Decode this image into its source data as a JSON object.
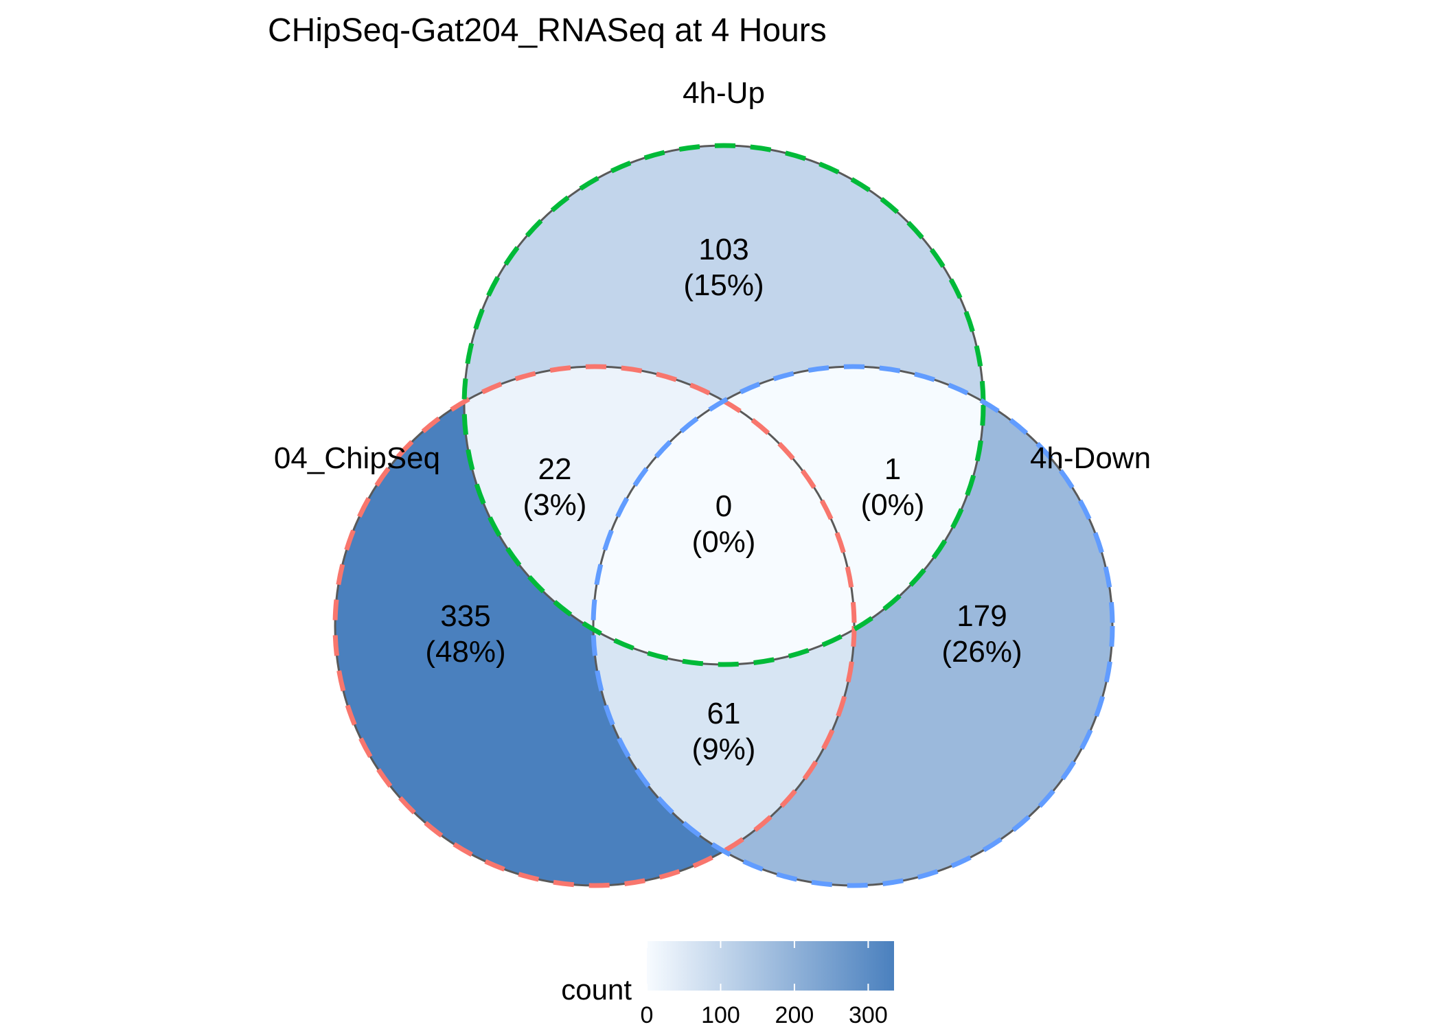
{
  "chart_data": {
    "type": "venn",
    "title": "CHipSeq-Gat204_RNASeq at 4 Hours",
    "sets": [
      {
        "key": "chip",
        "label": "04_ChipSeq",
        "edge_color": "#F8766D"
      },
      {
        "key": "up",
        "label": "4h-Up",
        "edge_color": "#00BA38"
      },
      {
        "key": "down",
        "label": "4h-Down",
        "edge_color": "#619CFF"
      }
    ],
    "regions": [
      {
        "sets": [
          "up"
        ],
        "count": 103,
        "percent": "(15%)"
      },
      {
        "sets": [
          "chip",
          "up"
        ],
        "count": 22,
        "percent": "(3%)"
      },
      {
        "sets": [
          "up",
          "down"
        ],
        "count": 1,
        "percent": "(0%)"
      },
      {
        "sets": [
          "chip",
          "up",
          "down"
        ],
        "count": 0,
        "percent": "(0%)"
      },
      {
        "sets": [
          "chip"
        ],
        "count": 335,
        "percent": "(48%)"
      },
      {
        "sets": [
          "down"
        ],
        "count": 179,
        "percent": "(26%)"
      },
      {
        "sets": [
          "chip",
          "down"
        ],
        "count": 61,
        "percent": "(9%)"
      }
    ],
    "legend": {
      "title": "count",
      "placement": "bottom",
      "range": [
        0,
        335
      ],
      "ticks": [
        0,
        100,
        200,
        300
      ],
      "low_color": "#F7FBFF",
      "high_color": "#4A80BE"
    },
    "outline_color": "#595959"
  }
}
